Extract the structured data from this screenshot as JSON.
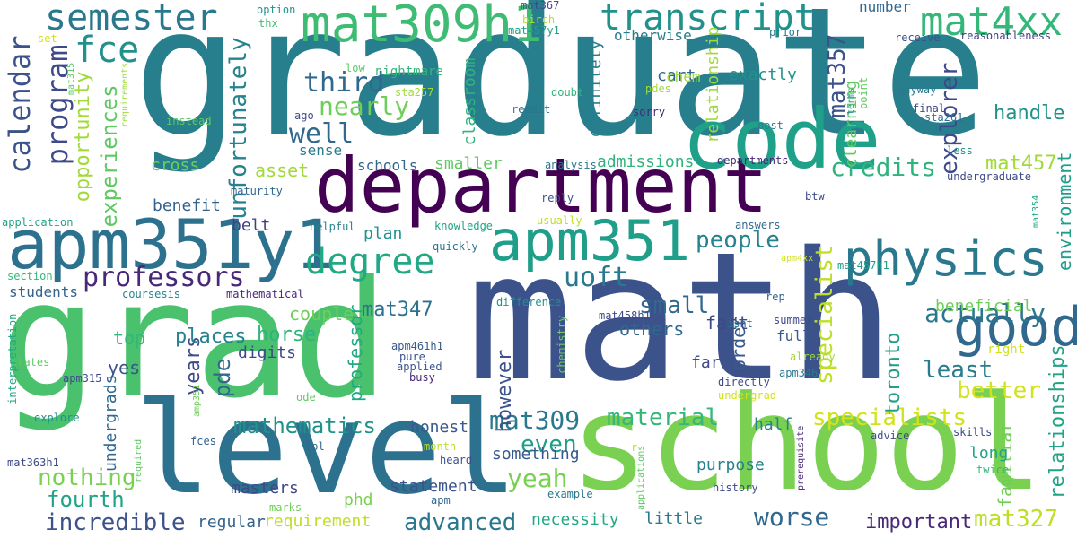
{
  "words": [
    {
      "text": "graduate",
      "color": "#277f8e"
    },
    {
      "text": "math",
      "color": "#3b528b"
    },
    {
      "text": "grad",
      "color": "#4ac16d"
    },
    {
      "text": "school",
      "color": "#7ad151"
    },
    {
      "text": "level",
      "color": "#2c728e"
    },
    {
      "text": "department",
      "color": "#440154"
    },
    {
      "text": "code",
      "color": "#1fa088"
    },
    {
      "text": "apm351y1",
      "color": "#2c728e"
    },
    {
      "text": "apm351",
      "color": "#1f9e89"
    },
    {
      "text": "semester",
      "color": "#2a788e"
    },
    {
      "text": "mat309h1",
      "color": "#3fbc73"
    },
    {
      "text": "transcript",
      "color": "#21918c"
    },
    {
      "text": "mat4xx",
      "color": "#35b779"
    },
    {
      "text": "physics",
      "color": "#2a788e"
    },
    {
      "text": "degree",
      "color": "#22a884"
    },
    {
      "text": "good",
      "color": "#31688e"
    },
    {
      "text": "calendar",
      "color": "#3b528b"
    },
    {
      "text": "program",
      "color": "#3e4989"
    },
    {
      "text": "fce",
      "color": "#21918c"
    },
    {
      "text": "opportunity",
      "color": "#a0da39"
    },
    {
      "text": "experiences",
      "color": "#5ec962"
    },
    {
      "text": "unfortunately",
      "color": "#26828e"
    },
    {
      "text": "third",
      "color": "#31688e"
    },
    {
      "text": "nearly",
      "color": "#6ece58"
    },
    {
      "text": "well",
      "color": "#31688e"
    },
    {
      "text": "professors",
      "color": "#482878"
    },
    {
      "text": "mat357",
      "color": "#3b528b"
    },
    {
      "text": "explorer",
      "color": "#3e4989"
    },
    {
      "text": "credits",
      "color": "#2fb47c"
    },
    {
      "text": "mat457",
      "color": "#a0da39"
    },
    {
      "text": "environment",
      "color": "#1f9e89"
    },
    {
      "text": "handle",
      "color": "#21918c"
    },
    {
      "text": "people",
      "color": "#26828e"
    },
    {
      "text": "uoft",
      "color": "#2a788e"
    },
    {
      "text": "small",
      "color": "#31688e"
    },
    {
      "text": "actually",
      "color": "#2a788e"
    },
    {
      "text": "relationship",
      "color": "#a0da39"
    },
    {
      "text": "relationships",
      "color": "#20a386"
    },
    {
      "text": "mat347",
      "color": "#2c728e"
    },
    {
      "text": "specialist",
      "color": "#bddf26"
    },
    {
      "text": "least",
      "color": "#287c8e"
    },
    {
      "text": "mathematics",
      "color": "#21918c"
    },
    {
      "text": "material",
      "color": "#35b779"
    },
    {
      "text": "specialists",
      "color": "#d2e21b"
    },
    {
      "text": "better",
      "color": "#d2e21b"
    },
    {
      "text": "mat309",
      "color": "#2a788e"
    },
    {
      "text": "even",
      "color": "#1f9e89"
    },
    {
      "text": "yeah",
      "color": "#7ad151"
    },
    {
      "text": "nothing",
      "color": "#7ad151"
    },
    {
      "text": "fourth",
      "color": "#20a386"
    },
    {
      "text": "incredible",
      "color": "#3b528b"
    },
    {
      "text": "advanced",
      "color": "#2a788e"
    },
    {
      "text": "worse",
      "color": "#31688e"
    },
    {
      "text": "mat327",
      "color": "#bddf26"
    },
    {
      "text": "important",
      "color": "#482878"
    },
    {
      "text": "toronto",
      "color": "#1fa088"
    },
    {
      "text": "years",
      "color": "#3e4989"
    },
    {
      "text": "pde",
      "color": "#31688e"
    },
    {
      "text": "places",
      "color": "#26828e"
    },
    {
      "text": "horse",
      "color": "#2fb47c"
    },
    {
      "text": "professor",
      "color": "#22a884"
    },
    {
      "text": "however",
      "color": "#3b528b"
    },
    {
      "text": "order",
      "color": "#38598c"
    },
    {
      "text": "familiar",
      "color": "#6ece58"
    },
    {
      "text": "long",
      "color": "#20a386"
    },
    {
      "text": "beneficial",
      "color": "#6ece58"
    },
    {
      "text": "fact",
      "color": "#3e4989"
    },
    {
      "text": "others",
      "color": "#31688e"
    },
    {
      "text": "top",
      "color": "#35b779"
    },
    {
      "text": "yes",
      "color": "#3b528b"
    },
    {
      "text": "couple",
      "color": "#6ece58"
    },
    {
      "text": "students",
      "color": "#33638d"
    },
    {
      "text": "plan",
      "color": "#21918c"
    },
    {
      "text": "belt",
      "color": "#424086"
    },
    {
      "text": "benefit",
      "color": "#33638d"
    },
    {
      "text": "asset",
      "color": "#a0da39"
    },
    {
      "text": "cross",
      "color": "#6ece58"
    },
    {
      "text": "smaller",
      "color": "#5ec962"
    },
    {
      "text": "admissions",
      "color": "#2fb47c"
    },
    {
      "text": "classroom",
      "color": "#2fb47c"
    },
    {
      "text": "definitely",
      "color": "#287c8e"
    },
    {
      "text": "exactly",
      "color": "#21918c"
    },
    {
      "text": "cart",
      "color": "#31688e"
    },
    {
      "text": "chem",
      "color": "#a0da39"
    },
    {
      "text": "clearning",
      "color": "#5ec962"
    },
    {
      "text": "otherwise",
      "color": "#287c8e"
    },
    {
      "text": "schools",
      "color": "#31688e"
    },
    {
      "text": "digits",
      "color": "#3e4989"
    },
    {
      "text": "sense",
      "color": "#287c8e"
    },
    {
      "text": "half",
      "color": "#26828e"
    },
    {
      "text": "full",
      "color": "#37598c"
    },
    {
      "text": "far",
      "color": "#3e4989"
    },
    {
      "text": "purpose",
      "color": "#26828e"
    },
    {
      "text": "something",
      "color": "#38598c"
    },
    {
      "text": "honest",
      "color": "#38598c"
    },
    {
      "text": "statement",
      "color": "#3b528b"
    },
    {
      "text": "masters",
      "color": "#3e4989"
    },
    {
      "text": "phd",
      "color": "#7ad151"
    },
    {
      "text": "regular",
      "color": "#33638d"
    },
    {
      "text": "requirement",
      "color": "#bddf26"
    },
    {
      "text": "little",
      "color": "#2a788e"
    },
    {
      "text": "necessity",
      "color": "#22a884"
    },
    {
      "text": "undergrads",
      "color": "#31688e"
    },
    {
      "text": "number",
      "color": "#31688e"
    },
    {
      "text": "option",
      "color": "#21918c"
    },
    {
      "text": "thx",
      "color": "#3fbc73"
    },
    {
      "text": "mat367",
      "color": "#3e4989"
    },
    {
      "text": "birch",
      "color": "#b5de2b"
    },
    {
      "text": "mat457y1",
      "color": "#1f9e89"
    },
    {
      "text": "prior",
      "color": "#287c8e"
    },
    {
      "text": "receive",
      "color": "#3b528b"
    },
    {
      "text": "reasonableness",
      "color": "#433e85"
    },
    {
      "text": "set",
      "color": "#d2e21b"
    },
    {
      "text": "low",
      "color": "#5ec962"
    },
    {
      "text": "nightmare",
      "color": "#35b779"
    },
    {
      "text": "mat315",
      "color": "#5ec962"
    },
    {
      "text": "requirements",
      "color": "#a0da39"
    },
    {
      "text": "sta257",
      "color": "#a0da39"
    },
    {
      "text": "doubt",
      "color": "#2fb47c"
    },
    {
      "text": "pdes",
      "color": "#a0da39"
    },
    {
      "text": "reddit",
      "color": "#2c728e"
    },
    {
      "text": "sorry",
      "color": "#482878"
    },
    {
      "text": "point",
      "color": "#5ec962"
    },
    {
      "text": "anyway",
      "color": "#2a788e"
    },
    {
      "text": "final",
      "color": "#3e4989"
    },
    {
      "text": "sta261",
      "color": "#2c728e"
    },
    {
      "text": "terms",
      "color": "#21918c"
    },
    {
      "text": "less",
      "color": "#21918c"
    },
    {
      "text": "ago",
      "color": "#3e4989"
    },
    {
      "text": "instead",
      "color": "#5ec962"
    },
    {
      "text": "post",
      "color": "#287c8e"
    },
    {
      "text": "departments",
      "color": "#482878"
    },
    {
      "text": "undergraduate",
      "color": "#3e4989"
    },
    {
      "text": "analysis",
      "color": "#2a788e"
    },
    {
      "text": "maturity",
      "color": "#31688e"
    },
    {
      "text": "btw",
      "color": "#3e4989"
    },
    {
      "text": "mat354",
      "color": "#22a884"
    },
    {
      "text": "application",
      "color": "#20a386"
    },
    {
      "text": "knowledge",
      "color": "#20a386"
    },
    {
      "text": "reply",
      "color": "#3b528b"
    },
    {
      "text": "answers",
      "color": "#31688e"
    },
    {
      "text": "usually",
      "color": "#bddf26"
    },
    {
      "text": "helpful",
      "color": "#26828e"
    },
    {
      "text": "quickly",
      "color": "#2c728e"
    },
    {
      "text": "mat457h1",
      "color": "#1f9e89"
    },
    {
      "text": "apm4xx",
      "color": "#d2e21b"
    },
    {
      "text": "section",
      "color": "#35b779"
    },
    {
      "text": "coursesis",
      "color": "#26828e"
    },
    {
      "text": "mathematical",
      "color": "#482878"
    },
    {
      "text": "difference",
      "color": "#21918c"
    },
    {
      "text": "mat458h1",
      "color": "#3e4989"
    },
    {
      "text": "rep",
      "color": "#33638d"
    },
    {
      "text": "isnt",
      "color": "#2c728e"
    },
    {
      "text": "summer",
      "color": "#3e4989"
    },
    {
      "text": "states",
      "color": "#5ec962"
    },
    {
      "text": "apm461h1",
      "color": "#38598c"
    },
    {
      "text": "pure",
      "color": "#3b528b"
    },
    {
      "text": "already",
      "color": "#a0da39"
    },
    {
      "text": "right",
      "color": "#d2e21b"
    },
    {
      "text": "interpretation",
      "color": "#22a884"
    },
    {
      "text": "apm315",
      "color": "#3e4989"
    },
    {
      "text": "amp351",
      "color": "#6ece58"
    },
    {
      "text": "applied",
      "color": "#3b528b"
    },
    {
      "text": "busy",
      "color": "#482878"
    },
    {
      "text": "ode",
      "color": "#5ec962"
    },
    {
      "text": "chemistry",
      "color": "#6ece58"
    },
    {
      "text": "apm346",
      "color": "#2a788e"
    },
    {
      "text": "directly",
      "color": "#3e4989"
    },
    {
      "text": "undergrad",
      "color": "#d2e21b"
    },
    {
      "text": "explore",
      "color": "#21918c"
    },
    {
      "text": "fces",
      "color": "#33638d"
    },
    {
      "text": "lol",
      "color": "#31688e"
    },
    {
      "text": "month",
      "color": "#bddf26"
    },
    {
      "text": "advice",
      "color": "#3e4989"
    },
    {
      "text": "skills",
      "color": "#3e4989"
    },
    {
      "text": "mat363h1",
      "color": "#3e4989"
    },
    {
      "text": "required",
      "color": "#5ec962"
    },
    {
      "text": "heard",
      "color": "#3b528b"
    },
    {
      "text": "r",
      "color": "#bddf26"
    },
    {
      "text": "applications",
      "color": "#5ec962"
    },
    {
      "text": "prerequisite",
      "color": "#482878"
    },
    {
      "text": "twice",
      "color": "#35b779"
    },
    {
      "text": "history",
      "color": "#3e4989"
    },
    {
      "text": "example",
      "color": "#2a788e"
    },
    {
      "text": "apm",
      "color": "#33638d"
    },
    {
      "text": "marks",
      "color": "#6ece58"
    }
  ]
}
